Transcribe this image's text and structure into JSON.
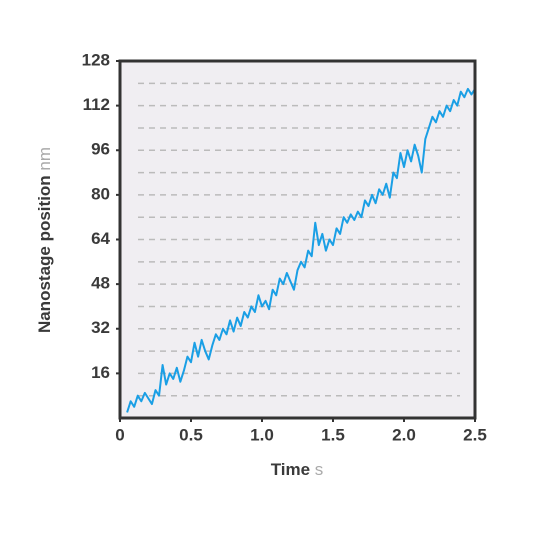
{
  "chart_data": {
    "type": "line",
    "xlabel": "Time",
    "xunit": "s",
    "ylabel": "Nanostage position",
    "yunit": "nm",
    "xlim": [
      0,
      2.5
    ],
    "ylim": [
      0,
      128
    ],
    "xticks": [
      0,
      0.5,
      {
        "value": 1,
        "label": "1.0"
      },
      1.5,
      {
        "value": 2,
        "label": "2.0"
      },
      2.5
    ],
    "yticks": [
      16,
      32,
      48,
      64,
      80,
      96,
      112,
      128
    ],
    "ygrid": [
      8,
      16,
      24,
      32,
      40,
      48,
      56,
      64,
      72,
      80,
      88,
      96,
      104,
      112,
      120
    ],
    "grid": true,
    "background": "#f0eef2",
    "series": [
      {
        "color": "#1a9fe5",
        "x": [
          0.05,
          0.075,
          0.1,
          0.125,
          0.15,
          0.175,
          0.2,
          0.225,
          0.25,
          0.275,
          0.3,
          0.325,
          0.35,
          0.375,
          0.4,
          0.425,
          0.45,
          0.475,
          0.5,
          0.525,
          0.55,
          0.575,
          0.6,
          0.625,
          0.65,
          0.675,
          0.7,
          0.725,
          0.75,
          0.775,
          0.8,
          0.825,
          0.85,
          0.875,
          0.9,
          0.925,
          0.95,
          0.975,
          1.0,
          1.025,
          1.05,
          1.075,
          1.1,
          1.125,
          1.15,
          1.175,
          1.2,
          1.225,
          1.25,
          1.275,
          1.3,
          1.325,
          1.35,
          1.375,
          1.4,
          1.425,
          1.45,
          1.475,
          1.5,
          1.525,
          1.55,
          1.575,
          1.6,
          1.625,
          1.65,
          1.675,
          1.7,
          1.725,
          1.75,
          1.775,
          1.8,
          1.825,
          1.85,
          1.875,
          1.9,
          1.925,
          1.95,
          1.975,
          2.0,
          2.025,
          2.05,
          2.075,
          2.1,
          2.125,
          2.15,
          2.175,
          2.2,
          2.225,
          2.25,
          2.275,
          2.3,
          2.325,
          2.35,
          2.375,
          2.4,
          2.425,
          2.45,
          2.475,
          2.5
        ],
        "values": [
          2,
          6,
          4,
          8,
          6,
          9,
          7,
          5,
          10,
          8,
          19,
          12,
          16,
          14,
          18,
          13,
          17,
          22,
          20,
          27,
          22,
          28,
          24,
          21,
          26,
          30,
          28,
          32,
          30,
          35,
          31,
          36,
          33,
          38,
          36,
          40,
          38,
          44,
          40,
          42,
          39,
          46,
          44,
          50,
          48,
          52,
          49,
          46,
          53,
          56,
          54,
          60,
          58,
          70,
          62,
          66,
          60,
          64,
          62,
          68,
          66,
          72,
          70,
          73,
          71,
          74,
          72,
          78,
          76,
          80,
          77,
          82,
          80,
          84,
          79,
          88,
          86,
          95,
          90,
          96,
          92,
          98,
          94,
          88,
          100,
          104,
          108,
          106,
          110,
          108,
          112,
          110,
          114,
          112,
          117,
          115,
          118,
          116,
          118
        ]
      }
    ]
  }
}
